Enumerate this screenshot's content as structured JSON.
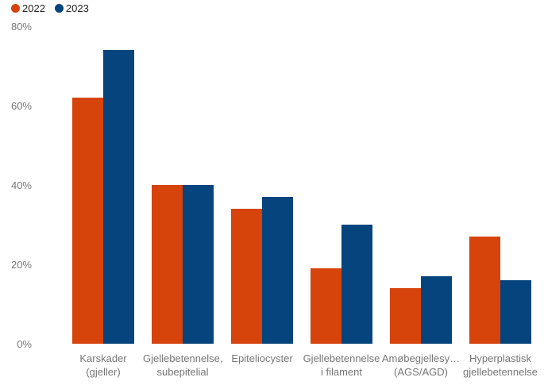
{
  "legend": {
    "items": [
      {
        "label": "2022",
        "color": "#d6430b"
      },
      {
        "label": "2023",
        "color": "#05447d"
      }
    ]
  },
  "colors": {
    "series_2022": "#d6430b",
    "series_2023": "#05447d",
    "axis_label": "#767676",
    "legend_text": "#252423",
    "background": "#ffffff"
  },
  "chart_data": {
    "type": "bar",
    "title": "",
    "xlabel": "",
    "ylabel": "",
    "ylim": [
      0,
      80
    ],
    "grid": false,
    "legend_position": "top-left",
    "y_ticks": [
      {
        "value": 0,
        "label": "0%"
      },
      {
        "value": 20,
        "label": "20%"
      },
      {
        "value": 40,
        "label": "40%"
      },
      {
        "value": 60,
        "label": "60%"
      },
      {
        "value": 80,
        "label": "80%"
      }
    ],
    "categories": [
      "Karskader (gjeller)",
      "Gjellebetennelse, subepitelial",
      "Epiteliocyster",
      "Gjellebetennelse i filament",
      "Amøbegjellesy… (AGS/AGD)",
      "Hyperplastisk gjellebetennelse"
    ],
    "category_lines": [
      [
        "Karskader",
        "(gjeller)"
      ],
      [
        "Gjellebetennelse,",
        "subepitelial"
      ],
      [
        "Epiteliocyster"
      ],
      [
        "Gjellebetennelse",
        "i filament"
      ],
      [
        "Amøbegjellesy…",
        "(AGS/AGD)"
      ],
      [
        "Hyperplastisk",
        "gjellebetennelse"
      ]
    ],
    "series": [
      {
        "name": "2022",
        "color": "#d6430b",
        "values": [
          62,
          40,
          34,
          19,
          14,
          27
        ]
      },
      {
        "name": "2023",
        "color": "#05447d",
        "values": [
          74,
          40,
          37,
          30,
          17,
          16
        ]
      }
    ]
  }
}
